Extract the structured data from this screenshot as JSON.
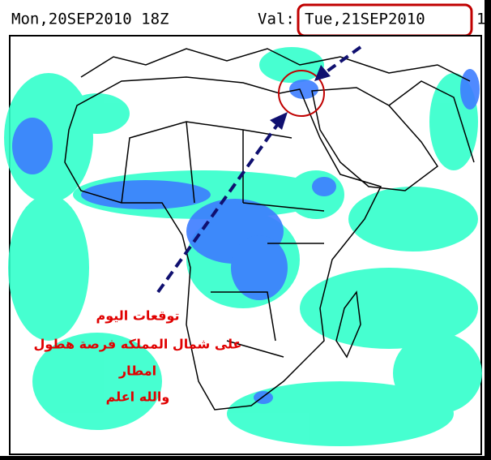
{
  "header": {
    "init_time": "Mon,20SEP2010 18Z",
    "valid_label": "Val:",
    "valid_time": "Tue,21SEP2010",
    "valid_hour": "1"
  },
  "annotation": {
    "lines": [
      "توقعات اليوم",
      "على شمال المملكه فرصة هطول",
      "امطار",
      "والله اعلم"
    ]
  }
}
